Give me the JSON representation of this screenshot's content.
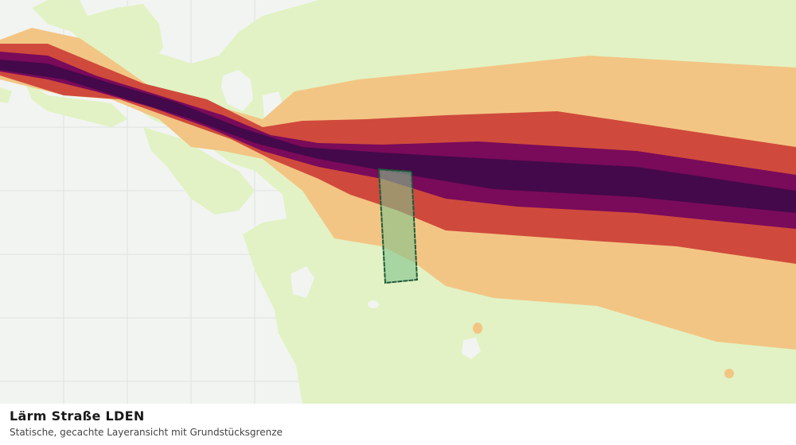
{
  "layer": {
    "title": "Lärm Straße LDEN",
    "subtitle": "Statische, gecachte Layeransicht mit Grundstücksgrenze"
  }
}
